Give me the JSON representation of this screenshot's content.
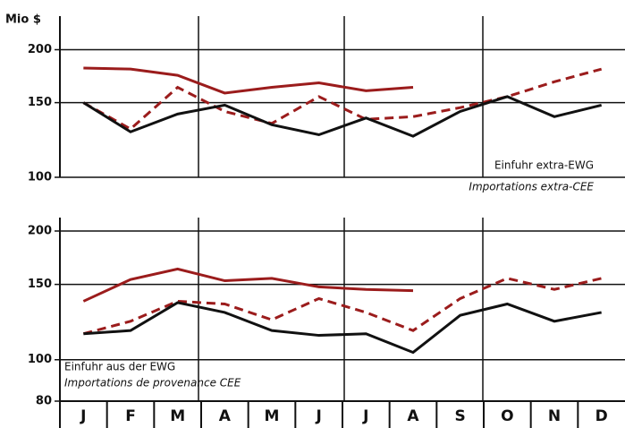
{
  "chart_data": [
    {
      "type": "line",
      "y_label": "Mio $",
      "log_y": true,
      "ylim": [
        100,
        240
      ],
      "yticks": [
        100,
        150,
        200
      ],
      "grid": true,
      "annotations": [
        "Einfuhr extra-EWG",
        "Importations extra-CEE"
      ],
      "series": [
        {
          "color": "#9b1c1c",
          "dashed": false,
          "values": [
            181,
            180,
            174,
            158,
            163,
            167,
            160,
            163,
            null,
            null,
            null,
            null
          ]
        },
        {
          "color": "#9b1c1c",
          "dashed": true,
          "values": [
            150,
            130,
            163,
            143,
            134,
            155,
            137,
            139,
            146,
            155,
            168,
            180
          ]
        },
        {
          "color": "#111111",
          "dashed": false,
          "values": [
            150,
            128,
            141,
            148,
            133,
            126,
            138,
            125,
            143,
            155,
            139,
            148
          ]
        }
      ]
    },
    {
      "type": "line",
      "log_y": true,
      "ylim": [
        80,
        215
      ],
      "yticks": [
        80,
        100,
        150,
        200
      ],
      "grid": true,
      "annotations": [
        "Einfuhr aus der EWG",
        "Importations de provenance CEE"
      ],
      "categories": [
        "J",
        "F",
        "M",
        "A",
        "M",
        "J",
        "J",
        "A",
        "S",
        "O",
        "N",
        "D"
      ],
      "series": [
        {
          "color": "#9b1c1c",
          "dashed": false,
          "values": [
            137,
            154,
            163,
            153,
            155,
            148,
            146,
            145,
            null,
            null,
            null,
            null
          ]
        },
        {
          "color": "#9b1c1c",
          "dashed": true,
          "values": [
            115,
            123,
            137,
            135,
            124,
            139,
            129,
            117,
            139,
            155,
            146,
            155
          ]
        },
        {
          "color": "#111111",
          "dashed": false,
          "values": [
            115,
            117,
            136,
            129,
            117,
            114,
            115,
            104,
            127,
            135,
            123,
            129
          ]
        }
      ]
    }
  ]
}
